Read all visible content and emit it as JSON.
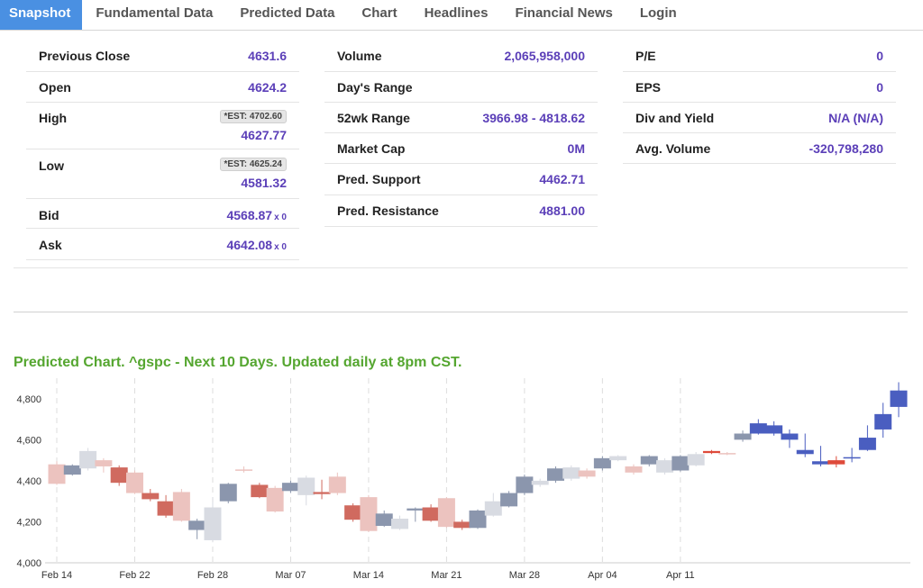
{
  "tabs": [
    {
      "label": "Snapshot",
      "active": true
    },
    {
      "label": "Fundamental Data"
    },
    {
      "label": "Predicted Data"
    },
    {
      "label": "Chart"
    },
    {
      "label": "Headlines"
    },
    {
      "label": "Financial News"
    },
    {
      "label": "Login"
    }
  ],
  "col1": {
    "prev_close": {
      "label": "Previous Close",
      "value": "4631.6"
    },
    "open": {
      "label": "Open",
      "value": "4624.2"
    },
    "high": {
      "label": "High",
      "est": "*EST: 4702.60",
      "value": "4627.77"
    },
    "low": {
      "label": "Low",
      "est": "*EST: 4625.24",
      "value": "4581.32"
    },
    "bid": {
      "label": "Bid",
      "value": "4568.87",
      "suffix": "x 0"
    },
    "ask": {
      "label": "Ask",
      "value": "4642.08",
      "suffix": "x 0"
    }
  },
  "col2": {
    "volume": {
      "label": "Volume",
      "value": "2,065,958,000"
    },
    "days_range": {
      "label": "Day's Range",
      "value": ""
    },
    "wk52_range": {
      "label": "52wk Range",
      "value": "3966.98 - 4818.62"
    },
    "market_cap": {
      "label": "Market Cap",
      "value": "0M"
    },
    "pred_support": {
      "label": "Pred. Support",
      "value": "4462.71"
    },
    "pred_resistance": {
      "label": "Pred. Resistance",
      "value": "4881.00"
    }
  },
  "col3": {
    "pe": {
      "label": "P/E",
      "value": "0"
    },
    "eps": {
      "label": "EPS",
      "value": "0"
    },
    "div_yield": {
      "label": "Div and Yield",
      "value": "N/A (N/A)"
    },
    "avg_volume": {
      "label": "Avg. Volume",
      "value": "-320,798,280"
    }
  },
  "chart_title": "Predicted Chart. ^gspc - Next 10 Days. Updated daily at 8pm CST.",
  "chart_data": {
    "type": "candlestick",
    "title": "Predicted Chart. ^gspc - Next 10 Days. Updated daily at 8pm CST.",
    "ylim": [
      4000,
      4900
    ],
    "yticks": [
      4000,
      4200,
      4400,
      4600,
      4800
    ],
    "ytick_labels": [
      "4,000",
      "4,200",
      "4,400",
      "4,600",
      "4,800"
    ],
    "xtick_labels": [
      "Feb 14",
      "Feb 22",
      "Feb 28",
      "Mar 07",
      "Mar 14",
      "Mar 21",
      "Mar 28",
      "Apr 04",
      "Apr 11"
    ],
    "xtick_index": [
      0,
      5,
      10,
      15,
      20,
      25,
      30,
      35,
      40
    ],
    "colors": {
      "up_past": "#8b96ad",
      "down_past": "#d06a5f",
      "up_light": "#d8dbe2",
      "down_light": "#ecc3bf",
      "up_pred": "#4a5ec0",
      "down_pred": "#de4a3a",
      "grid": "#dddddd"
    },
    "candles": [
      {
        "open": 4385,
        "close": 4480,
        "high": 4495,
        "low": 4380,
        "style": "down_light"
      },
      {
        "open": 4430,
        "close": 4475,
        "high": 4480,
        "low": 4425,
        "style": "up_past"
      },
      {
        "open": 4460,
        "close": 4545,
        "high": 4560,
        "low": 4450,
        "style": "up_light"
      },
      {
        "open": 4470,
        "close": 4500,
        "high": 4510,
        "low": 4440,
        "style": "down_light"
      },
      {
        "open": 4465,
        "close": 4390,
        "high": 4475,
        "low": 4375,
        "style": "down_past"
      },
      {
        "open": 4440,
        "close": 4340,
        "high": 4450,
        "low": 4335,
        "style": "down_light"
      },
      {
        "open": 4340,
        "close": 4310,
        "high": 4360,
        "low": 4300,
        "style": "down_past"
      },
      {
        "open": 4300,
        "close": 4230,
        "high": 4330,
        "low": 4220,
        "style": "down_past"
      },
      {
        "open": 4345,
        "close": 4205,
        "high": 4360,
        "low": 4200,
        "style": "down_light"
      },
      {
        "open": 4160,
        "close": 4205,
        "high": 4215,
        "low": 4115,
        "style": "up_past"
      },
      {
        "open": 4110,
        "close": 4270,
        "high": 4320,
        "low": 4100,
        "style": "up_light"
      },
      {
        "open": 4300,
        "close": 4385,
        "high": 4390,
        "low": 4290,
        "style": "up_past"
      },
      {
        "open": 4450,
        "close": 4455,
        "high": 4470,
        "low": 4440,
        "style": "down_light"
      },
      {
        "open": 4380,
        "close": 4320,
        "high": 4390,
        "low": 4315,
        "style": "down_past"
      },
      {
        "open": 4365,
        "close": 4250,
        "high": 4375,
        "low": 4245,
        "style": "down_light"
      },
      {
        "open": 4350,
        "close": 4390,
        "high": 4400,
        "low": 4340,
        "style": "up_past"
      },
      {
        "open": 4330,
        "close": 4415,
        "high": 4425,
        "low": 4280,
        "style": "up_light"
      },
      {
        "open": 4345,
        "close": 4335,
        "high": 4405,
        "low": 4310,
        "style": "down_past"
      },
      {
        "open": 4420,
        "close": 4340,
        "high": 4440,
        "low": 4330,
        "style": "down_light"
      },
      {
        "open": 4280,
        "close": 4210,
        "high": 4290,
        "low": 4200,
        "style": "down_past"
      },
      {
        "open": 4320,
        "close": 4155,
        "high": 4330,
        "low": 4150,
        "style": "down_light"
      },
      {
        "open": 4180,
        "close": 4240,
        "high": 4255,
        "low": 4175,
        "style": "up_past"
      },
      {
        "open": 4165,
        "close": 4215,
        "high": 4230,
        "low": 4160,
        "style": "up_light"
      },
      {
        "open": 4255,
        "close": 4265,
        "high": 4270,
        "low": 4200,
        "style": "up_past"
      },
      {
        "open": 4270,
        "close": 4205,
        "high": 4285,
        "low": 4200,
        "style": "down_past"
      },
      {
        "open": 4315,
        "close": 4175,
        "high": 4320,
        "low": 4170,
        "style": "down_light"
      },
      {
        "open": 4200,
        "close": 4170,
        "high": 4210,
        "low": 4160,
        "style": "down_past"
      },
      {
        "open": 4170,
        "close": 4255,
        "high": 4260,
        "low": 4165,
        "style": "up_past"
      },
      {
        "open": 4230,
        "close": 4300,
        "high": 4340,
        "low": 4225,
        "style": "up_light"
      },
      {
        "open": 4275,
        "close": 4340,
        "high": 4350,
        "low": 4270,
        "style": "up_past"
      },
      {
        "open": 4340,
        "close": 4420,
        "high": 4430,
        "low": 4330,
        "style": "up_past"
      },
      {
        "open": 4380,
        "close": 4400,
        "high": 4410,
        "low": 4370,
        "style": "up_light"
      },
      {
        "open": 4400,
        "close": 4460,
        "high": 4470,
        "low": 4390,
        "style": "up_past"
      },
      {
        "open": 4410,
        "close": 4465,
        "high": 4475,
        "low": 4400,
        "style": "up_light"
      },
      {
        "open": 4450,
        "close": 4420,
        "high": 4460,
        "low": 4410,
        "style": "down_light"
      },
      {
        "open": 4460,
        "close": 4510,
        "high": 4520,
        "low": 4450,
        "style": "up_past"
      },
      {
        "open": 4500,
        "close": 4520,
        "high": 4525,
        "low": 4495,
        "style": "up_light"
      },
      {
        "open": 4470,
        "close": 4440,
        "high": 4480,
        "low": 4430,
        "style": "down_light"
      },
      {
        "open": 4480,
        "close": 4520,
        "high": 4525,
        "low": 4470,
        "style": "up_past"
      },
      {
        "open": 4440,
        "close": 4500,
        "high": 4510,
        "low": 4430,
        "style": "up_light"
      },
      {
        "open": 4450,
        "close": 4520,
        "high": 4525,
        "low": 4445,
        "style": "up_past"
      },
      {
        "open": 4475,
        "close": 4530,
        "high": 4540,
        "low": 4470,
        "style": "up_light"
      },
      {
        "open": 4545,
        "close": 4535,
        "high": 4550,
        "low": 4530,
        "style": "down_pred"
      },
      {
        "open": 4530,
        "close": 4535,
        "high": 4540,
        "low": 4525,
        "style": "down_light"
      },
      {
        "open": 4600,
        "close": 4630,
        "high": 4645,
        "low": 4590,
        "style": "up_past"
      },
      {
        "open": 4630,
        "close": 4680,
        "high": 4700,
        "low": 4625,
        "style": "up_pred"
      },
      {
        "open": 4630,
        "close": 4670,
        "high": 4690,
        "low": 4620,
        "style": "up_pred"
      },
      {
        "open": 4600,
        "close": 4630,
        "high": 4650,
        "low": 4560,
        "style": "up_pred"
      },
      {
        "open": 4530,
        "close": 4550,
        "high": 4630,
        "low": 4515,
        "style": "up_pred"
      },
      {
        "open": 4480,
        "close": 4495,
        "high": 4570,
        "low": 4470,
        "style": "up_pred"
      },
      {
        "open": 4480,
        "close": 4500,
        "high": 4520,
        "low": 4465,
        "style": "down_pred"
      },
      {
        "open": 4510,
        "close": 4515,
        "high": 4560,
        "low": 4490,
        "style": "up_pred"
      },
      {
        "open": 4550,
        "close": 4610,
        "high": 4670,
        "low": 4545,
        "style": "up_pred"
      },
      {
        "open": 4650,
        "close": 4725,
        "high": 4780,
        "low": 4610,
        "style": "up_pred"
      },
      {
        "open": 4760,
        "close": 4840,
        "high": 4880,
        "low": 4710,
        "style": "up_pred"
      }
    ]
  }
}
